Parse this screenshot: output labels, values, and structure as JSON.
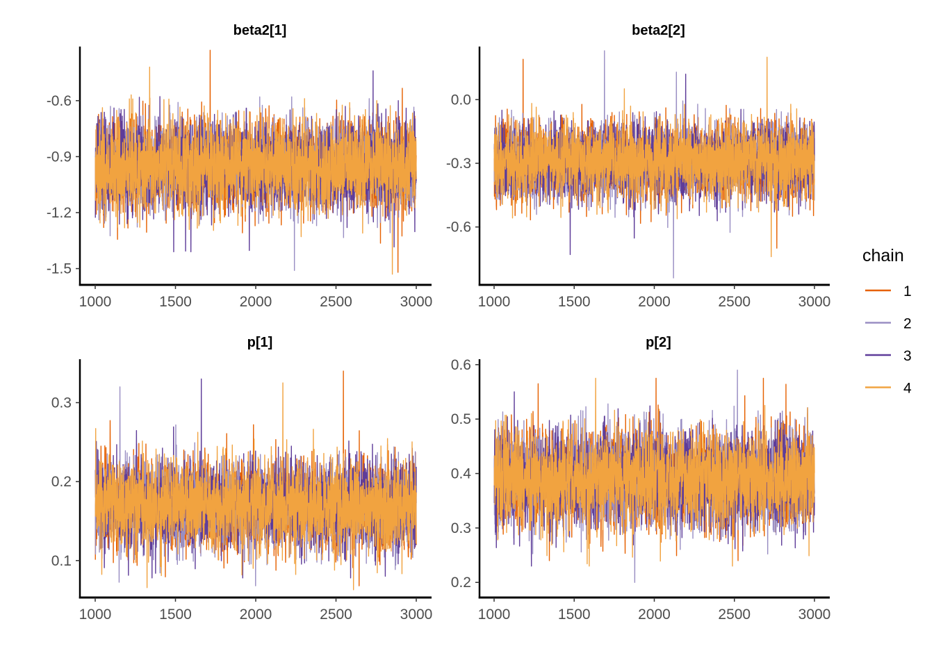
{
  "chart_data": [
    {
      "type": "line",
      "title": "beta2[1]",
      "xlabel": "",
      "ylabel": "",
      "xlim": [
        1000,
        3000
      ],
      "ylim": [
        -1.55,
        -0.31
      ],
      "x_ticks": [
        1000,
        1500,
        2000,
        2500,
        3000
      ],
      "y_ticks": [
        -0.6,
        -0.9,
        -1.2,
        -1.5
      ],
      "y_tick_labels": [
        "-0.6",
        "-0.9",
        "-1.2",
        "-1.5"
      ],
      "center": -0.95,
      "spread": 0.12,
      "series": [
        {
          "name": "1",
          "min": -1.52,
          "max": -0.33
        },
        {
          "name": "2",
          "min": -1.51,
          "max": -0.58
        },
        {
          "name": "3",
          "min": -1.41,
          "max": -0.44
        },
        {
          "name": "4",
          "min": -1.53,
          "max": -0.42
        }
      ]
    },
    {
      "type": "line",
      "title": "beta2[2]",
      "xlabel": "",
      "ylabel": "",
      "xlim": [
        1000,
        3000
      ],
      "ylim": [
        -0.84,
        0.25
      ],
      "x_ticks": [
        1000,
        1500,
        2000,
        2500,
        3000
      ],
      "y_ticks": [
        0.0,
        -0.3,
        -0.6
      ],
      "y_tick_labels": [
        "0.0",
        "-0.3",
        "-0.6"
      ],
      "center": -0.29,
      "spread": 0.09,
      "series": [
        {
          "name": "1",
          "min": -0.7,
          "max": 0.19
        },
        {
          "name": "2",
          "min": -0.84,
          "max": 0.23
        },
        {
          "name": "3",
          "min": -0.73,
          "max": 0.12
        },
        {
          "name": "4",
          "min": -0.74,
          "max": 0.2
        }
      ]
    },
    {
      "type": "line",
      "title": "p[1]",
      "xlabel": "",
      "ylabel": "",
      "xlim": [
        1000,
        3000
      ],
      "ylim": [
        0.062,
        0.355
      ],
      "x_ticks": [
        1000,
        1500,
        2000,
        2500,
        3000
      ],
      "y_ticks": [
        0.3,
        0.2,
        0.1
      ],
      "y_tick_labels": [
        "0.3",
        "0.2",
        "0.1"
      ],
      "center": 0.17,
      "spread": 0.028,
      "series": [
        {
          "name": "1",
          "min": 0.068,
          "max": 0.34
        },
        {
          "name": "2",
          "min": 0.068,
          "max": 0.32
        },
        {
          "name": "3",
          "min": 0.078,
          "max": 0.33
        },
        {
          "name": "4",
          "min": 0.063,
          "max": 0.325
        }
      ]
    },
    {
      "type": "line",
      "title": "p[2]",
      "xlabel": "",
      "ylabel": "",
      "xlim": [
        1000,
        3000
      ],
      "ylim": [
        0.185,
        0.61
      ],
      "x_ticks": [
        1000,
        1500,
        2000,
        2500,
        3000
      ],
      "y_ticks": [
        0.6,
        0.5,
        0.4,
        0.3,
        0.2
      ],
      "y_tick_labels": [
        "0.6",
        "0.5",
        "0.4",
        "0.3",
        "0.2"
      ],
      "center": 0.39,
      "spread": 0.045,
      "series": [
        {
          "name": "1",
          "min": 0.24,
          "max": 0.575
        },
        {
          "name": "2",
          "min": 0.2,
          "max": 0.59
        },
        {
          "name": "3",
          "min": 0.23,
          "max": 0.55
        },
        {
          "name": "4",
          "min": 0.23,
          "max": 0.575
        }
      ]
    }
  ],
  "legend": {
    "title": "chain",
    "placement": "right",
    "entries": [
      {
        "label": "1",
        "color": "#E66101"
      },
      {
        "label": "2",
        "color": "#998EC3"
      },
      {
        "label": "3",
        "color": "#5E3C99"
      },
      {
        "label": "4",
        "color": "#F1A340"
      }
    ]
  },
  "draw_order": [
    "1",
    "2",
    "3",
    "4"
  ]
}
